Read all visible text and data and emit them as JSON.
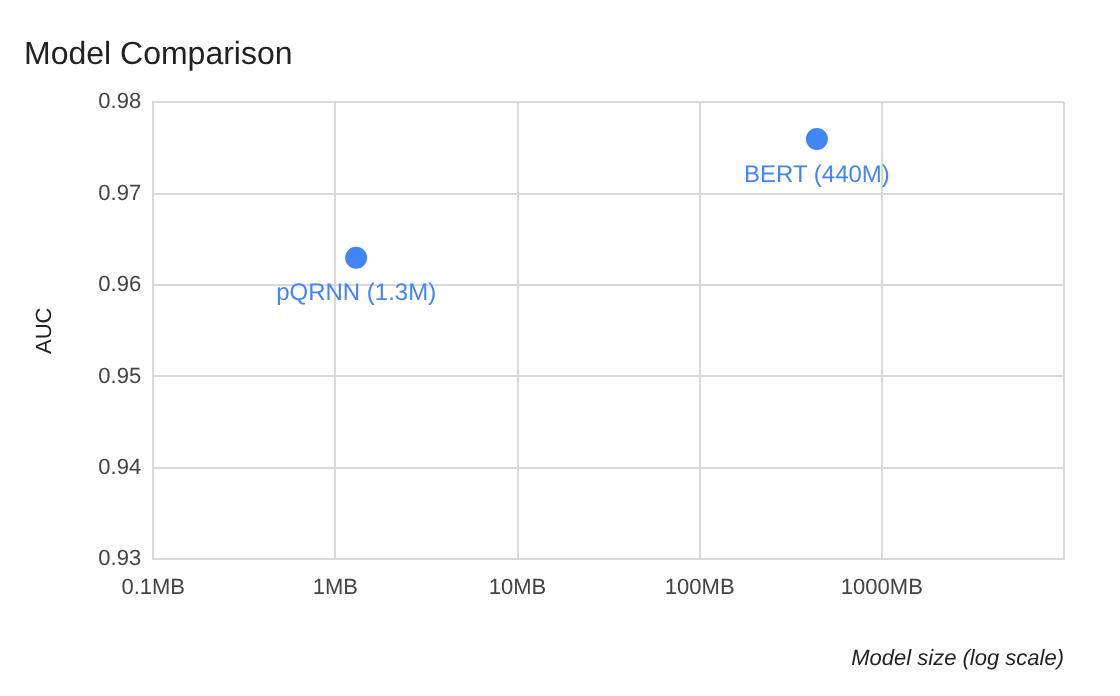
{
  "chart_data": {
    "type": "scatter",
    "title": "Model Comparison",
    "xlabel": "Model size (log scale)",
    "ylabel": "AUC",
    "x": [
      1.3,
      440
    ],
    "series": [
      {
        "color": "#4285f4",
        "values": [
          0.963,
          0.976
        ]
      }
    ],
    "annotations": [
      {
        "text": "pQRNN (1.3M)",
        "x": 1.3,
        "y": 0.963
      },
      {
        "text": "BERT (440M)",
        "x": 440,
        "y": 0.976
      }
    ],
    "log": "x",
    "xlim": [
      0.1,
      10000
    ],
    "xticks": [
      {
        "value": 0.1,
        "label": "0.1MB"
      },
      {
        "value": 1,
        "label": "1MB"
      },
      {
        "value": 10,
        "label": "10MB"
      },
      {
        "value": 100,
        "label": "100MB"
      },
      {
        "value": 1000,
        "label": "1000MB"
      },
      {
        "value": 10000,
        "label": null
      }
    ],
    "ylim": [
      0.93,
      0.98
    ],
    "yticks": [
      0.93,
      0.94,
      0.95,
      0.96,
      0.97,
      0.98
    ],
    "grid": true,
    "legend": false,
    "marker": "circle"
  }
}
